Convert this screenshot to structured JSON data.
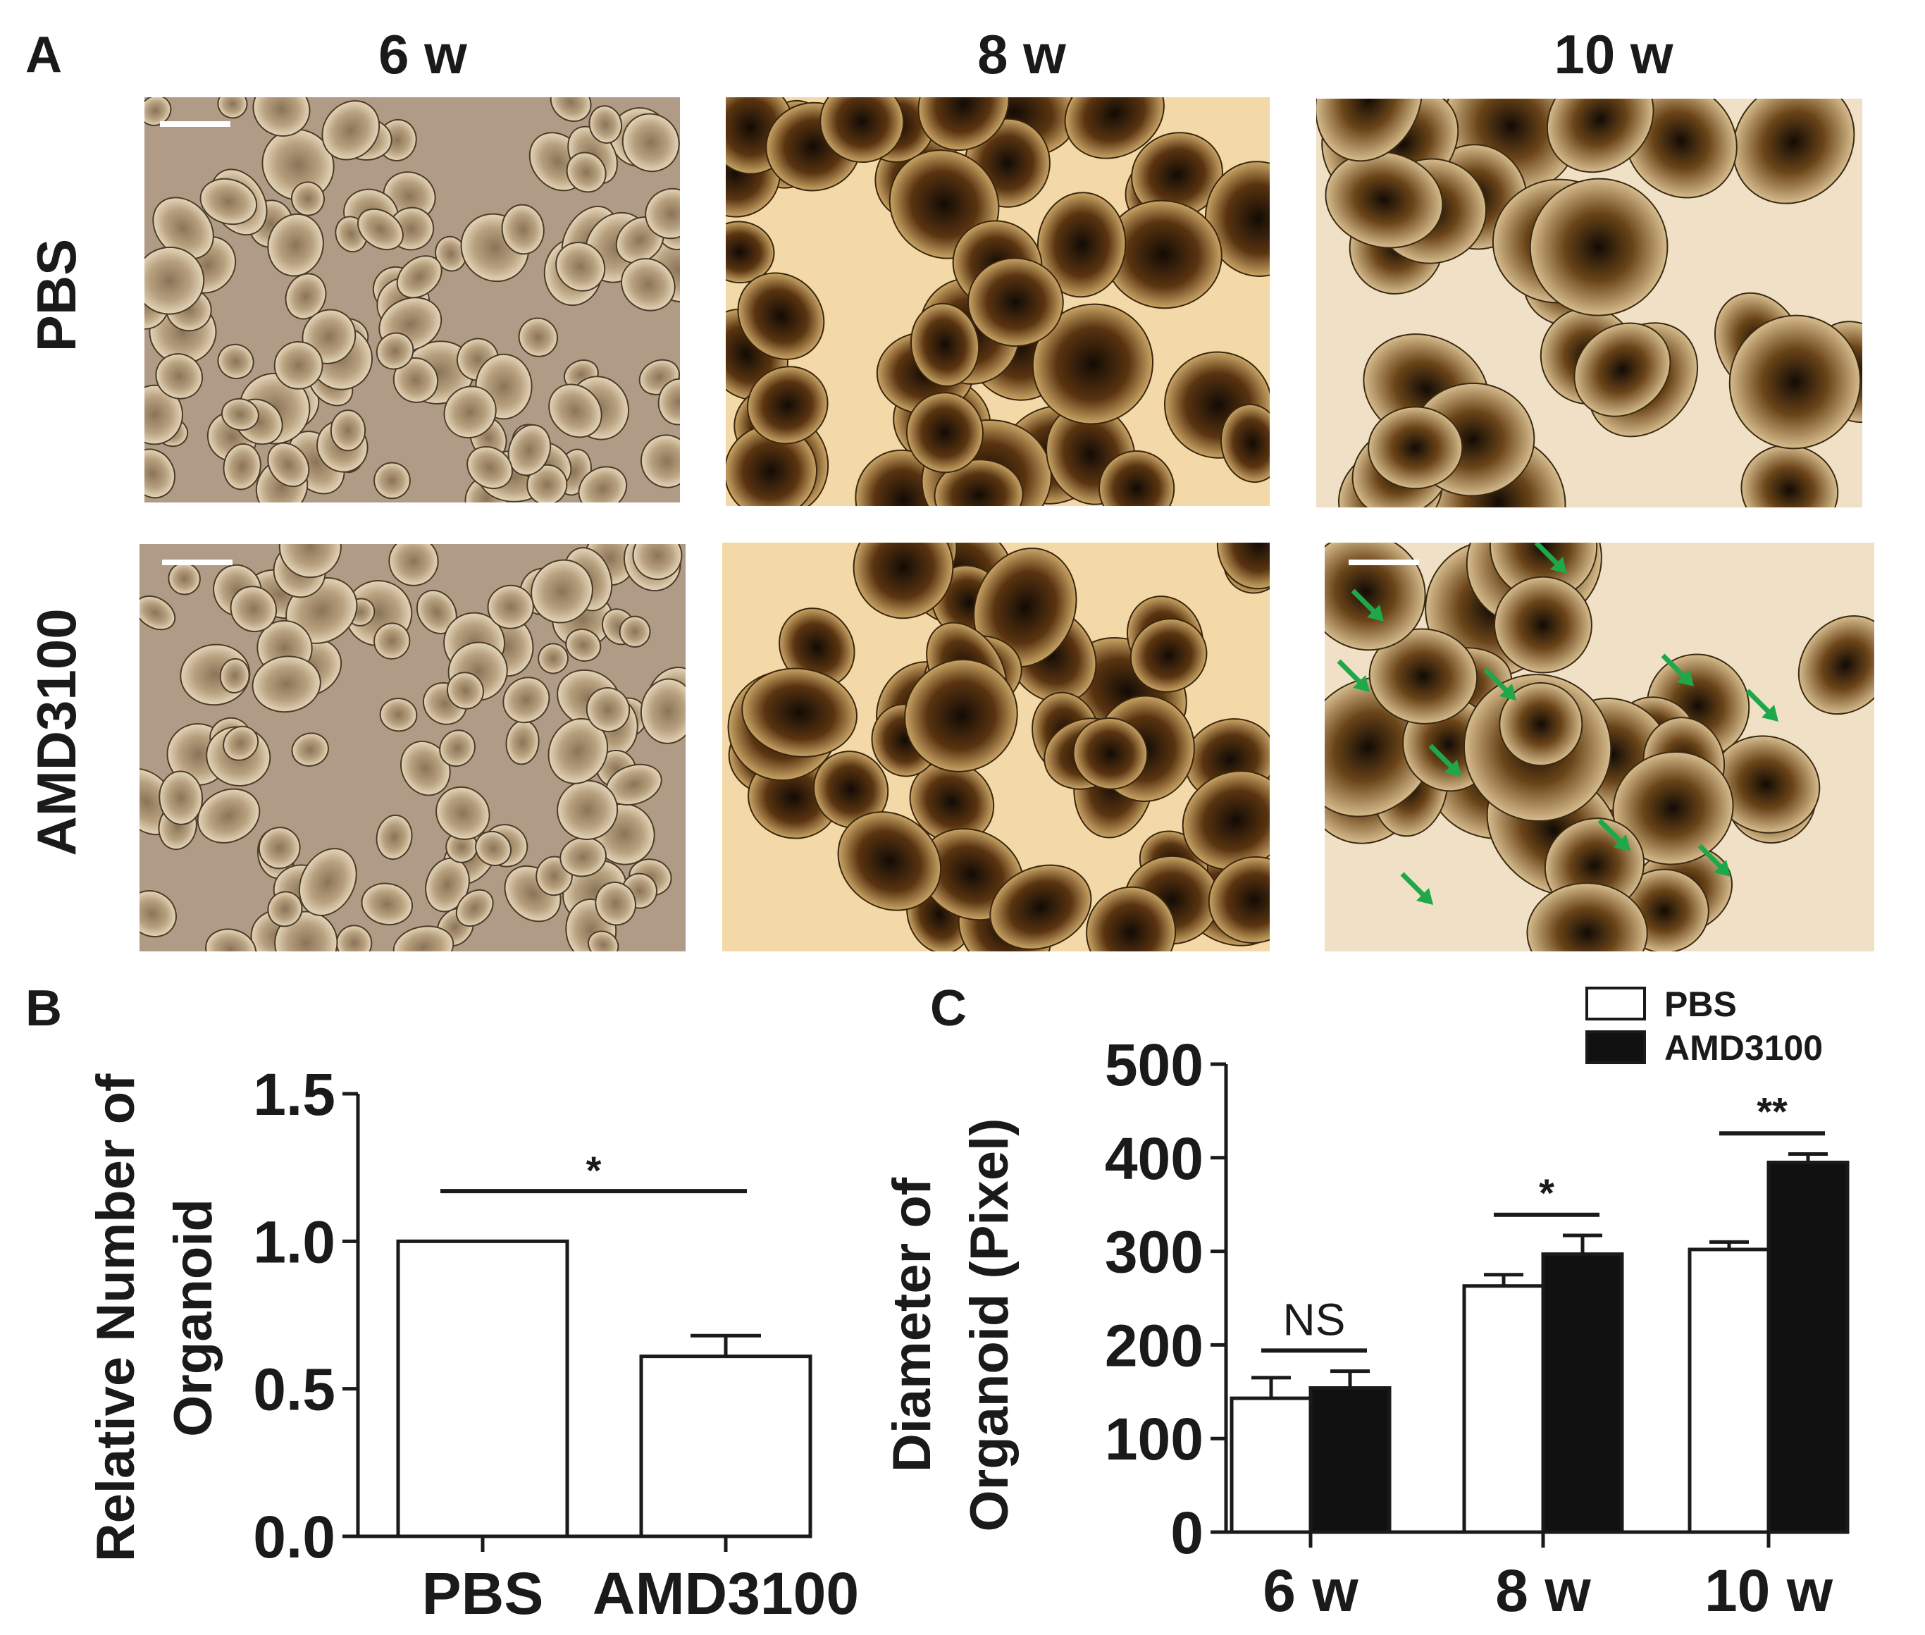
{
  "panels": {
    "a": {
      "letter": "A",
      "columns": [
        "6 w",
        "8 w",
        "10 w"
      ],
      "rows": [
        "PBS",
        "AMD3100"
      ]
    },
    "b": {
      "letter": "B"
    },
    "c": {
      "letter": "C"
    }
  },
  "colors": {
    "bar_pbs": "#ffffff",
    "bar_amd3100": "#111111",
    "axis": "#1a1a1a",
    "arrow": "#1fa84a",
    "bg_6w": "#b09c86",
    "bg_8w": "#f3d9a8",
    "bg_10w": "#f0e0c6"
  },
  "chart_data": [
    {
      "type": "bar",
      "title": "",
      "ylabel": [
        "Relative Number of",
        "Organoid"
      ],
      "xlabel": "",
      "categories": [
        "PBS",
        "AMD3100"
      ],
      "values": [
        1.0,
        0.61
      ],
      "errors": [
        0,
        0.07
      ],
      "ylim": [
        0.0,
        1.5
      ],
      "yticks": [
        "0.0",
        "0.5",
        "1.0",
        "1.5"
      ],
      "significance": [
        {
          "between": [
            0,
            1
          ],
          "label": "*"
        }
      ],
      "grid": false,
      "legend": "none"
    },
    {
      "type": "bar",
      "title": "",
      "ylabel": [
        "Diameter of",
        "Organoid (Pixel)"
      ],
      "xlabel": "",
      "categories": [
        "6 w",
        "8 w",
        "10 w"
      ],
      "series": [
        {
          "name": "PBS",
          "values": [
            143,
            263,
            302
          ],
          "errors": [
            22,
            12,
            8
          ]
        },
        {
          "name": "AMD3100",
          "values": [
            154,
            297,
            395
          ],
          "errors": [
            18,
            20,
            9
          ]
        }
      ],
      "ylim": [
        0,
        500
      ],
      "yticks": [
        "0",
        "100",
        "200",
        "300",
        "400",
        "500"
      ],
      "significance": [
        {
          "category": 0,
          "label": "NS"
        },
        {
          "category": 1,
          "label": "*"
        },
        {
          "category": 2,
          "label": "**"
        }
      ],
      "grid": false,
      "legend": "top-right"
    }
  ]
}
